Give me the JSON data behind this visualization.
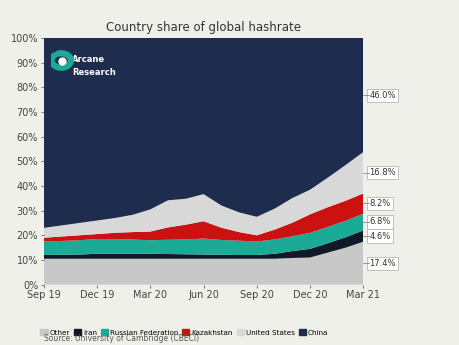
{
  "title": "Country share of global hashrate",
  "source": "Source: University of Cambridge (CBECI)",
  "x_labels": [
    "Sep 19",
    "Dec 19",
    "Mar 20",
    "Jun 20",
    "Sep 20",
    "Dec 20",
    "Mar 21"
  ],
  "series_names": [
    "Other",
    "Iran",
    "Russian Federation",
    "Kazakhstan",
    "United States",
    "China"
  ],
  "colors": [
    "#c8c8c8",
    "#111827",
    "#1aaa96",
    "#cc1111",
    "#d8d8d8",
    "#1e2d4e"
  ],
  "end_labels": [
    "17.4%",
    "4.6%",
    "6.8%",
    "8.2%",
    "16.8%",
    "46.0%"
  ],
  "ylim": [
    0,
    100
  ],
  "bg_color": "#f0f0ea",
  "plot_bg": "#1e2d4e"
}
